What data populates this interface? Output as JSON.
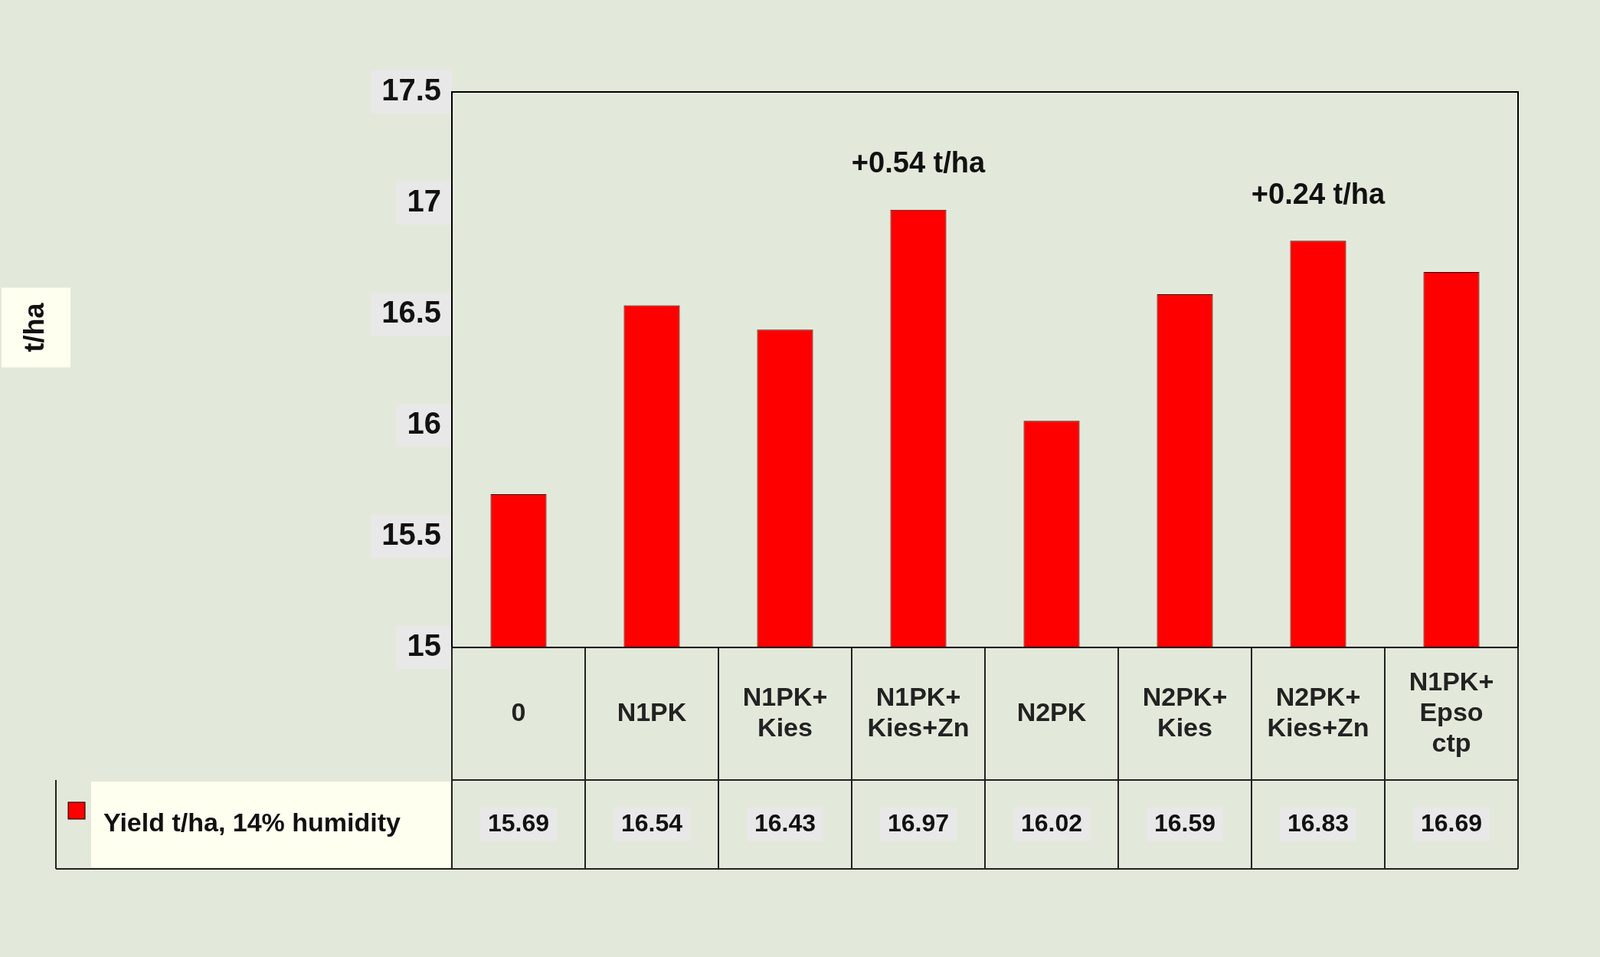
{
  "chart_data": {
    "type": "bar",
    "y_label": "t/ha",
    "categories": [
      "0",
      "N1PK",
      "N1PK+ Kies",
      "N1PK+ Kies+Zn",
      "N2PK",
      "N2PK+ Kies",
      "N2PK+ Kies+Zn",
      "N1PK+ Epso ctp"
    ],
    "series": [
      {
        "name": "Yield t/ha, 14% humidity",
        "color": "#ff0000",
        "values": [
          15.69,
          16.54,
          16.43,
          16.97,
          16.02,
          16.59,
          16.83,
          16.69
        ]
      }
    ],
    "annotations": [
      {
        "text": "+0.54 t/ha",
        "category": "N1PK+ Kies+Zn"
      },
      {
        "text": "+0.24 t/ha",
        "category": "N2PK+ Kies+Zn"
      }
    ],
    "ylim": [
      15,
      17.5
    ],
    "yticks": [
      15,
      15.5,
      16,
      16.5,
      17,
      17.5
    ],
    "grid": false
  }
}
